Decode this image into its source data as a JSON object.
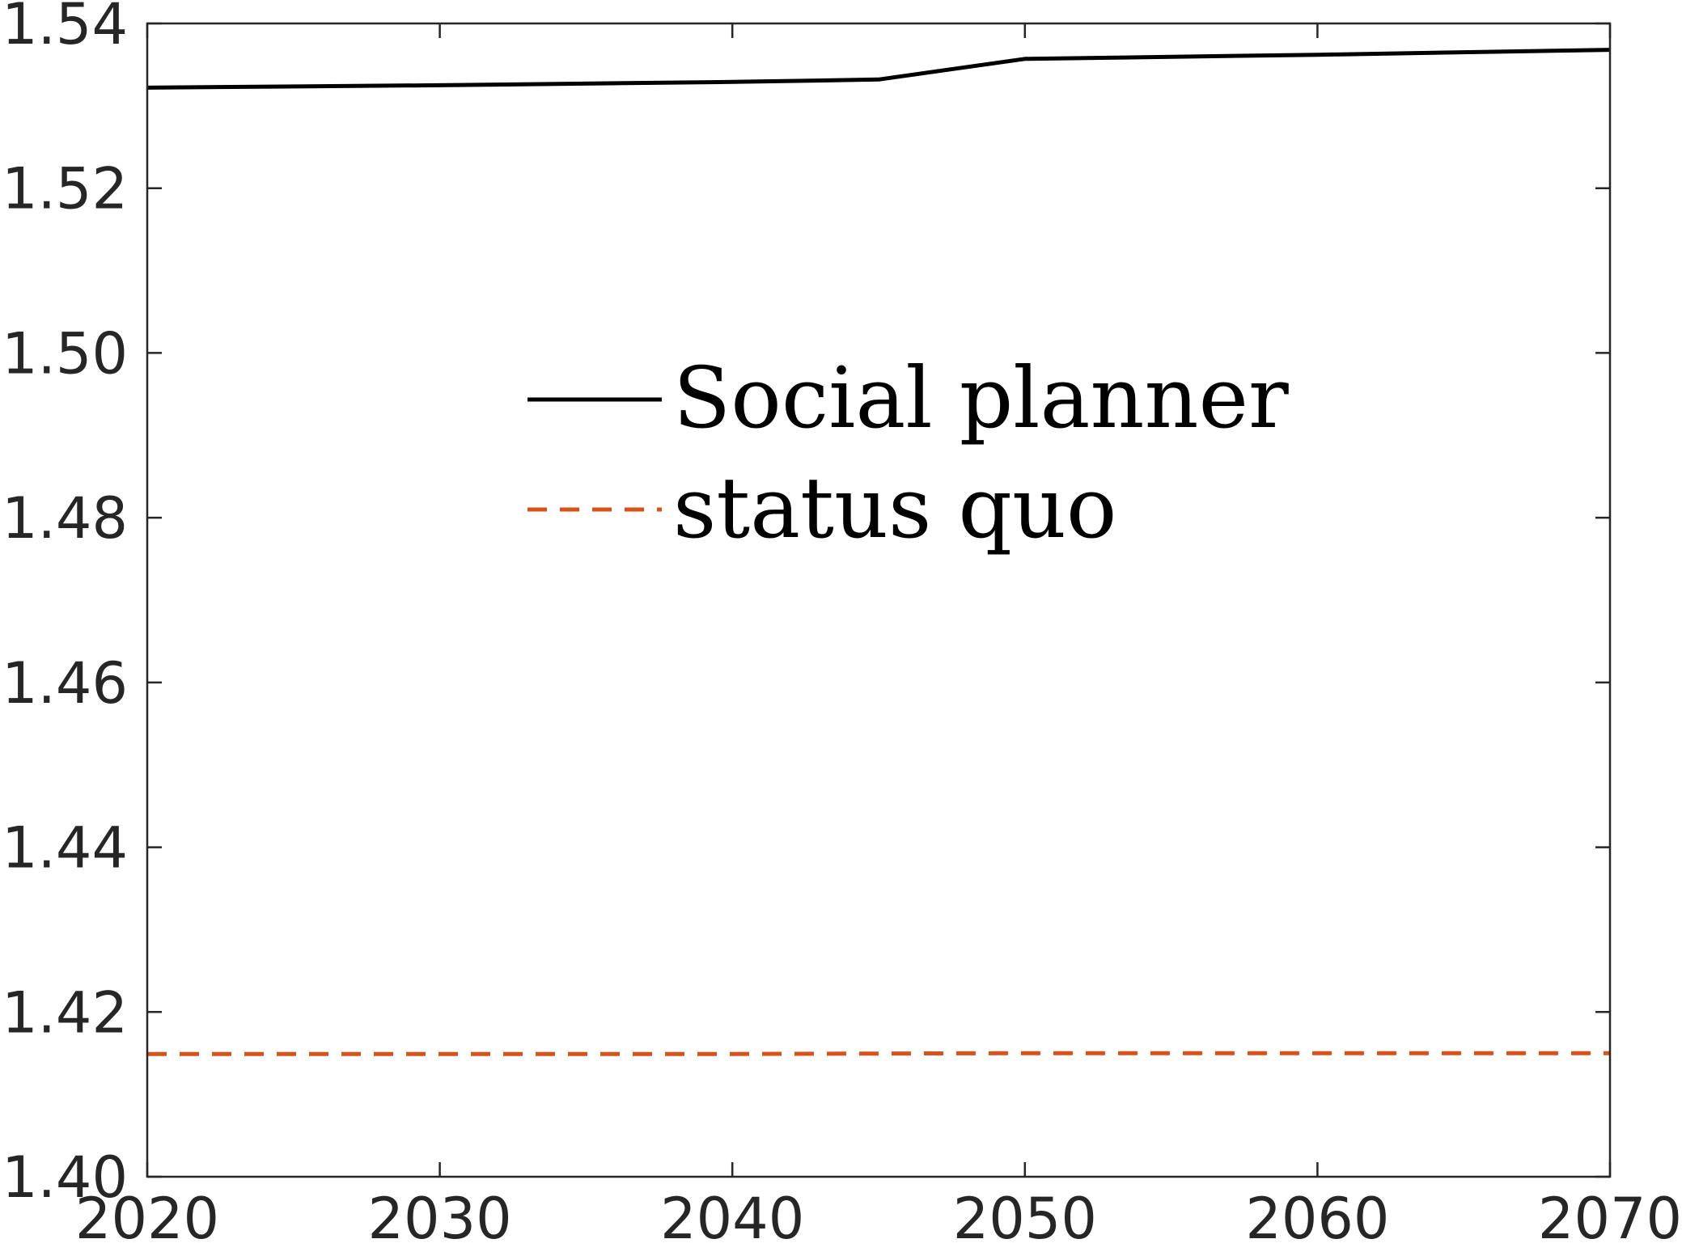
{
  "chart_data": {
    "type": "line",
    "title": "",
    "xlabel": "",
    "ylabel": "",
    "xlim": [
      2020,
      2070
    ],
    "ylim": [
      1.4,
      1.54
    ],
    "x_ticks": [
      "2020",
      "2030",
      "2040",
      "2050",
      "2060",
      "2070"
    ],
    "y_ticks": [
      "1.40",
      "1.42",
      "1.44",
      "1.46",
      "1.48",
      "1.50",
      "1.52",
      "1.54"
    ],
    "grid": false,
    "legend_position": "center",
    "series": [
      {
        "name": "Social planner",
        "color": "#000000",
        "style": "solid",
        "x": [
          2020,
          2030,
          2040,
          2045,
          2050,
          2060,
          2070
        ],
        "y": [
          1.5322,
          1.5325,
          1.5329,
          1.5332,
          1.5357,
          1.5362,
          1.5368
        ]
      },
      {
        "name": "status quo",
        "color": "#D95319",
        "style": "dashed",
        "x": [
          2020,
          2030,
          2040,
          2050,
          2060,
          2070
        ],
        "y": [
          1.4149,
          1.4149,
          1.4149,
          1.415,
          1.415,
          1.415
        ]
      }
    ]
  }
}
